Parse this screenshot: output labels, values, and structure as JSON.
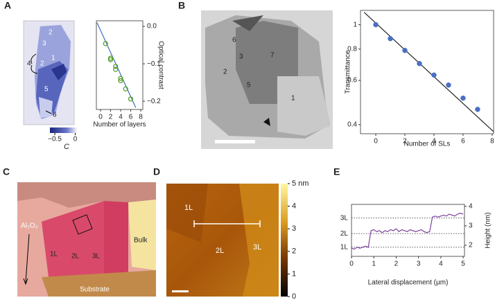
{
  "panels": {
    "A": {
      "letter": "A",
      "labels": [
        "2",
        "3",
        "1",
        "4",
        "2",
        "5",
        "6"
      ],
      "colorbar": {
        "range": [
          -0.62,
          0.06
        ],
        "ticks": [
          {
            "value": -0.5,
            "label": "−0.5"
          },
          0
        ],
        "label": "C"
      }
    },
    "B": {
      "letter": "B",
      "labels": [
        "6",
        "3",
        "7",
        "2",
        "5",
        "1"
      ]
    },
    "C": {
      "letter": "C",
      "labels": [
        "Al₂O₃",
        "1L",
        "2L",
        "3L",
        "Bulk",
        "Substrate"
      ]
    },
    "D": {
      "letter": "D",
      "labels": [
        "1L",
        "2L",
        "3L"
      ],
      "colorbar": {
        "range": [
          0,
          5
        ],
        "ticks": [
          {
            "value": 5,
            "label": "5 nm"
          },
          4,
          3,
          2,
          1,
          0
        ]
      }
    },
    "E": {
      "letter": "E"
    }
  },
  "chart_data": [
    {
      "type": "scatter",
      "xlabel": "Number of layers",
      "ylabel": "Optical contrast",
      "xlim": [
        -0.83,
        8.41
      ],
      "ylim": [
        -0.222,
        0.015
      ],
      "xticks": [
        0,
        2,
        4,
        6,
        8
      ],
      "yticks": [
        {
          "value": 0,
          "label": "0.0"
        },
        {
          "value": -0.1,
          "label": "−0.1"
        },
        {
          "value": -0.2,
          "label": "−0.2"
        }
      ],
      "y_axis_side": "right",
      "series": [
        {
          "style": "line",
          "color": "#3a6fbf",
          "x": [
            -0.7,
            7
          ],
          "values": [
            0.01,
            -0.217
          ]
        },
        {
          "style": "open-circle",
          "color": "#5aa02c",
          "x": [
            1,
            2,
            2,
            3,
            3,
            4,
            4,
            5,
            6
          ],
          "values": [
            -0.046,
            -0.085,
            -0.089,
            -0.107,
            -0.115,
            -0.139,
            -0.145,
            -0.167,
            -0.194
          ]
        }
      ]
    },
    {
      "type": "scatter",
      "xlabel": "Number of SLs",
      "ylabel": "Transmittance",
      "xlim": [
        -1.05,
        8.1
      ],
      "ylim": [
        0.368,
        1.14
      ],
      "log_y": true,
      "xticks": [
        0,
        2,
        4,
        6,
        8
      ],
      "yticks": [
        {
          "value": 1,
          "label": "1"
        },
        0.8,
        0.6,
        0.4
      ],
      "y_axis_side": "left",
      "series": [
        {
          "style": "line",
          "color": "#222222",
          "x": [
            -0.8,
            8.1
          ],
          "values": [
            1.12,
            0.375
          ]
        },
        {
          "style": "filled-circle",
          "color": "#4a6fc4",
          "x": [
            0,
            1,
            2,
            3,
            4,
            5,
            6,
            7
          ],
          "values": [
            1.0,
            0.88,
            0.79,
            0.7,
            0.63,
            0.575,
            0.51,
            0.46
          ]
        }
      ]
    },
    {
      "type": "line",
      "xlabel": "Lateral displacement (µm)",
      "ylabel": "Height (nm)",
      "xlim": [
        0,
        5.06
      ],
      "ylim": [
        1.43,
        4.1
      ],
      "xticks": [
        0,
        1,
        2,
        3,
        4,
        5
      ],
      "yticks": [
        2,
        3,
        4
      ],
      "y_axis_side": "right",
      "reference_lines": [
        {
          "label": "3L",
          "value": 3.4
        },
        {
          "label": "2L",
          "value": 2.6
        },
        {
          "label": "1L",
          "value": 1.9
        }
      ],
      "series": [
        {
          "style": "line",
          "color": "#7b3f9e",
          "x": [
            0,
            0.125,
            0.25,
            0.375,
            0.5,
            0.625,
            0.75,
            0.875,
            1,
            1.125,
            1.25,
            1.375,
            1.5,
            1.625,
            1.75,
            1.875,
            2,
            2.125,
            2.25,
            2.375,
            2.5,
            2.625,
            2.75,
            2.875,
            3,
            3.125,
            3.25,
            3.375,
            3.5,
            3.625,
            3.75,
            3.875,
            4,
            4.125,
            4.25,
            4.375,
            4.5,
            4.625,
            4.75,
            4.875,
            5
          ],
          "values": [
            1.85,
            1.8,
            1.9,
            1.85,
            1.9,
            1.95,
            1.9,
            2.75,
            2.8,
            2.7,
            2.75,
            2.65,
            2.75,
            2.7,
            2.8,
            2.75,
            2.85,
            2.7,
            2.8,
            2.75,
            2.7,
            2.8,
            2.75,
            2.7,
            2.75,
            2.8,
            2.7,
            2.65,
            2.7,
            3.45,
            3.5,
            3.45,
            3.5,
            3.55,
            3.5,
            3.6,
            3.55,
            3.5,
            3.6,
            3.65,
            3.6
          ]
        }
      ]
    }
  ]
}
